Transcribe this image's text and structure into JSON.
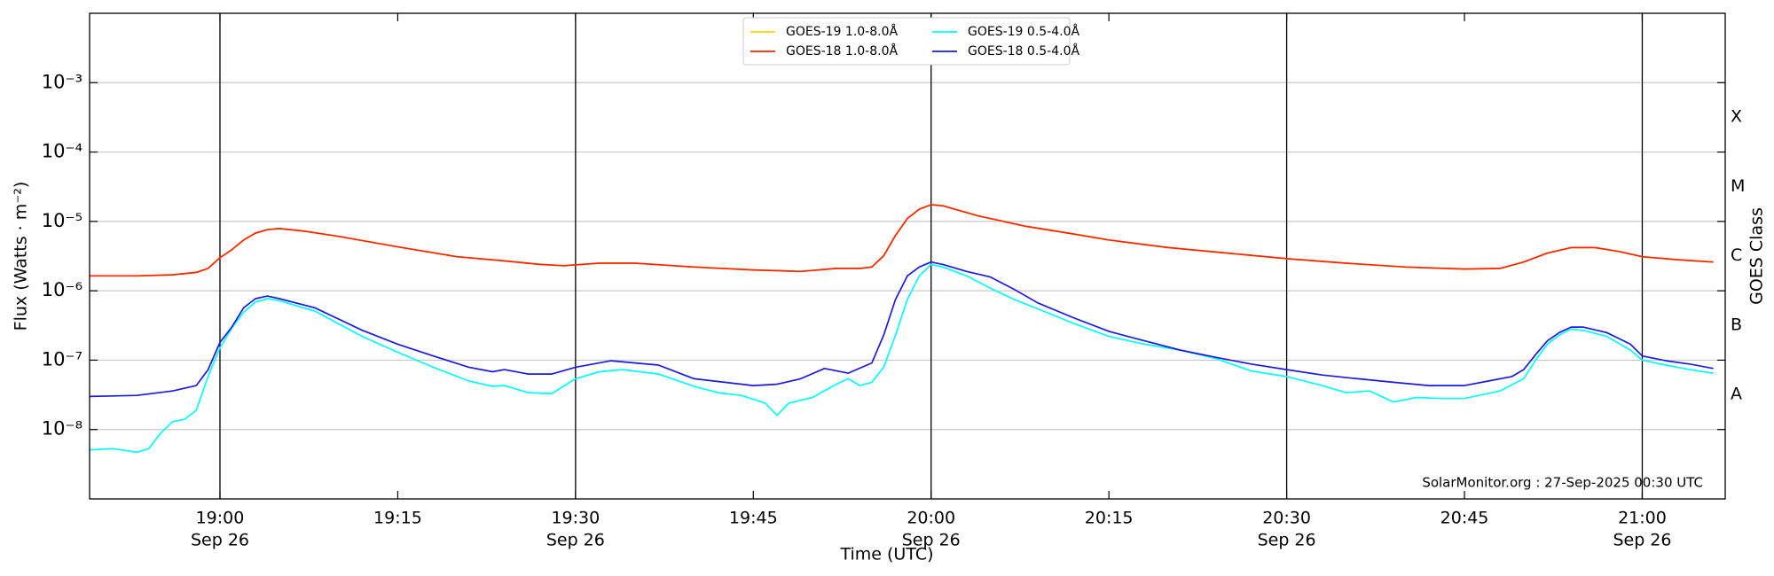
{
  "chart_data": {
    "type": "line",
    "xlabel": "Time (UTC)",
    "ylabel": "Flux (Watts · m⁻²)",
    "y2label": "GOES Class",
    "annotation": "SolarMonitor.org : 27-Sep-2025 00:30 UTC",
    "log_y": true,
    "grid": true,
    "legend": "upper center",
    "xlim": [
      "18:49",
      "21:07"
    ],
    "xticks": [
      {
        "value": "19:00",
        "label": [
          "19:00",
          "Sep 26"
        ]
      },
      "19:15",
      {
        "value": "19:30",
        "label": [
          "19:30",
          "Sep 26"
        ]
      },
      "19:45",
      {
        "value": "20:00",
        "label": [
          "20:00",
          "Sep 26"
        ]
      },
      "20:15",
      {
        "value": "20:30",
        "label": [
          "20:30",
          "Sep 26"
        ]
      },
      "20:45",
      {
        "value": "21:00",
        "label": [
          "21:00",
          "Sep 26"
        ]
      }
    ],
    "vlines": [
      "19:00",
      "19:30",
      "20:00",
      "20:30",
      "21:00"
    ],
    "ylim": [
      1e-09,
      0.01
    ],
    "yticks": [
      {
        "value": 1e-08,
        "label": "10⁻⁸"
      },
      {
        "value": 1e-07,
        "label": "10⁻⁷"
      },
      {
        "value": 1e-06,
        "label": "10⁻⁶"
      },
      {
        "value": 1e-05,
        "label": "10⁻⁵"
      },
      {
        "value": 0.0001,
        "label": "10⁻⁴"
      },
      {
        "value": 0.001,
        "label": "10⁻³"
      }
    ],
    "y2lim": [
      1e-09,
      0.01
    ],
    "y2ticks": [
      {
        "value": 3.2e-08,
        "label": "A"
      },
      {
        "value": 3.2e-07,
        "label": "B"
      },
      {
        "value": 3.2e-06,
        "label": "C"
      },
      {
        "value": 3.2e-05,
        "label": "M"
      },
      {
        "value": 0.00032,
        "label": "X"
      }
    ],
    "series": [
      {
        "name": "GOES-19 1.0-8.0Å",
        "color": "#ffd700",
        "x": [
          "18:49",
          "18:53",
          "18:56",
          "18:58",
          "18:59",
          "19:00",
          "19:01",
          "19:02",
          "19:03",
          "19:04",
          "19:05",
          "19:07",
          "19:10",
          "19:15",
          "19:20",
          "19:24",
          "19:27",
          "19:29",
          "19:32",
          "19:35",
          "19:40",
          "19:45",
          "19:49",
          "19:52",
          "19:54",
          "19:55",
          "19:56",
          "19:57",
          "19:58",
          "19:59",
          "20:00",
          "20:01",
          "20:02",
          "20:04",
          "20:08",
          "20:12",
          "20:15",
          "20:20",
          "20:25",
          "20:30",
          "20:35",
          "20:40",
          "20:45",
          "20:48",
          "20:50",
          "20:52",
          "20:54",
          "20:56",
          "20:58",
          "21:00",
          "21:03",
          "21:06"
        ],
        "values": [
          1.64e-06,
          1.64e-06,
          1.7e-06,
          1.84e-06,
          2.1e-06,
          3e-06,
          3.9e-06,
          5.4e-06,
          6.8e-06,
          7.6e-06,
          7.9e-06,
          7.3e-06,
          6.1e-06,
          4.3e-06,
          3.1e-06,
          2.7e-06,
          2.4e-06,
          2.3e-06,
          2.5e-06,
          2.5e-06,
          2.2e-06,
          2e-06,
          1.9e-06,
          2.1e-06,
          2.1e-06,
          2.2e-06,
          3.2e-06,
          6.3e-06,
          1.1e-05,
          1.5e-05,
          1.74e-05,
          1.68e-05,
          1.5e-05,
          1.2e-05,
          8.5e-06,
          6.6e-06,
          5.4e-06,
          4.2e-06,
          3.5e-06,
          2.9e-06,
          2.5e-06,
          2.2e-06,
          2.06e-06,
          2.1e-06,
          2.6e-06,
          3.5e-06,
          4.2e-06,
          4.2e-06,
          3.7e-06,
          3.1e-06,
          2.8e-06,
          2.6e-06
        ]
      },
      {
        "name": "GOES-18 1.0-8.0Å",
        "color": "#ff2200",
        "x": [
          "18:49",
          "18:53",
          "18:56",
          "18:58",
          "18:59",
          "19:00",
          "19:01",
          "19:02",
          "19:03",
          "19:04",
          "19:05",
          "19:07",
          "19:10",
          "19:15",
          "19:20",
          "19:24",
          "19:27",
          "19:29",
          "19:32",
          "19:35",
          "19:40",
          "19:45",
          "19:49",
          "19:52",
          "19:54",
          "19:55",
          "19:56",
          "19:57",
          "19:58",
          "19:59",
          "20:00",
          "20:01",
          "20:02",
          "20:04",
          "20:08",
          "20:12",
          "20:15",
          "20:20",
          "20:25",
          "20:30",
          "20:35",
          "20:40",
          "20:45",
          "20:48",
          "20:50",
          "20:52",
          "20:54",
          "20:56",
          "20:58",
          "21:00",
          "21:03",
          "21:06"
        ],
        "values": [
          1.64e-06,
          1.64e-06,
          1.7e-06,
          1.84e-06,
          2.1e-06,
          3e-06,
          3.9e-06,
          5.4e-06,
          6.8e-06,
          7.6e-06,
          7.9e-06,
          7.3e-06,
          6.1e-06,
          4.3e-06,
          3.1e-06,
          2.7e-06,
          2.4e-06,
          2.3e-06,
          2.5e-06,
          2.5e-06,
          2.2e-06,
          2e-06,
          1.9e-06,
          2.1e-06,
          2.1e-06,
          2.2e-06,
          3.2e-06,
          6.3e-06,
          1.1e-05,
          1.5e-05,
          1.74e-05,
          1.68e-05,
          1.5e-05,
          1.2e-05,
          8.5e-06,
          6.6e-06,
          5.4e-06,
          4.2e-06,
          3.5e-06,
          2.9e-06,
          2.5e-06,
          2.2e-06,
          2.06e-06,
          2.1e-06,
          2.6e-06,
          3.5e-06,
          4.2e-06,
          4.2e-06,
          3.7e-06,
          3.1e-06,
          2.8e-06,
          2.6e-06
        ]
      },
      {
        "name": "GOES-19 0.5-4.0Å",
        "color": "#00ffff",
        "x": [
          "18:49",
          "18:51",
          "18:53",
          "18:54",
          "18:55",
          "18:56",
          "18:57",
          "18:58",
          "18:59",
          "19:00",
          "19:01",
          "19:02",
          "19:03",
          "19:04",
          "19:05",
          "19:08",
          "19:12",
          "19:15",
          "19:18",
          "19:21",
          "19:23",
          "19:24",
          "19:26",
          "19:28",
          "19:30",
          "19:32",
          "19:34",
          "19:37",
          "19:40",
          "19:42",
          "19:44",
          "19:46",
          "19:47",
          "19:48",
          "19:50",
          "19:52",
          "19:53",
          "19:54",
          "19:55",
          "19:56",
          "19:57",
          "19:58",
          "19:59",
          "20:00",
          "20:01",
          "20:03",
          "20:05",
          "20:07",
          "20:09",
          "20:12",
          "20:15",
          "20:18",
          "20:21",
          "20:24",
          "20:27",
          "20:30",
          "20:33",
          "20:35",
          "20:37",
          "20:39",
          "20:41",
          "20:43",
          "20:45",
          "20:48",
          "20:50",
          "20:51",
          "20:52",
          "20:53",
          "20:54",
          "20:55",
          "20:57",
          "20:59",
          "21:00",
          "21:02",
          "21:04",
          "21:06"
        ],
        "values": [
          5.1e-09,
          5.3e-09,
          4.7e-09,
          5.3e-09,
          8.9e-09,
          1.3e-08,
          1.4e-08,
          1.9e-08,
          5.8e-08,
          1.5e-07,
          2.9e-07,
          4.9e-07,
          6.9e-07,
          7.7e-07,
          7.2e-07,
          5.1e-07,
          2.2e-07,
          1.3e-07,
          7.9e-08,
          5e-08,
          4.2e-08,
          4.3e-08,
          3.4e-08,
          3.3e-08,
          5.4e-08,
          6.8e-08,
          7.3e-08,
          6.3e-08,
          4.2e-08,
          3.4e-08,
          3.1e-08,
          2.4e-08,
          1.6e-08,
          2.4e-08,
          2.9e-08,
          4.5e-08,
          5.4e-08,
          4.3e-08,
          4.8e-08,
          7.9e-08,
          2.3e-07,
          7.5e-07,
          1.64e-06,
          2.4e-06,
          2.2e-06,
          1.64e-06,
          1.09e-06,
          7.5e-07,
          5.5e-07,
          3.4e-07,
          2.2e-07,
          1.7e-07,
          1.4e-07,
          1.06e-07,
          7e-08,
          5.8e-08,
          4.3e-08,
          3.4e-08,
          3.6e-08,
          2.5e-08,
          2.9e-08,
          2.8e-08,
          2.8e-08,
          3.6e-08,
          5.4e-08,
          1e-07,
          1.7e-07,
          2.3e-07,
          2.8e-07,
          2.7e-07,
          2.2e-07,
          1.4e-07,
          1e-07,
          8.5e-08,
          7.3e-08,
          6.5e-08
        ]
      },
      {
        "name": "GOES-18 0.5-4.0Å",
        "color": "#1a1ae0",
        "x": [
          "18:49",
          "18:53",
          "18:56",
          "18:58",
          "18:59",
          "19:00",
          "19:01",
          "19:02",
          "19:03",
          "19:04",
          "19:05",
          "19:08",
          "19:12",
          "19:15",
          "19:18",
          "19:21",
          "19:23",
          "19:24",
          "19:26",
          "19:28",
          "19:30",
          "19:33",
          "19:37",
          "19:40",
          "19:45",
          "19:47",
          "19:49",
          "19:51",
          "19:53",
          "19:55",
          "19:56",
          "19:57",
          "19:58",
          "19:59",
          "20:00",
          "20:01",
          "20:03",
          "20:05",
          "20:07",
          "20:09",
          "20:12",
          "20:15",
          "20:18",
          "20:21",
          "20:24",
          "20:27",
          "20:30",
          "20:33",
          "20:36",
          "20:39",
          "20:42",
          "20:45",
          "20:47",
          "20:49",
          "20:50",
          "20:51",
          "20:52",
          "20:53",
          "20:54",
          "20:55",
          "20:57",
          "20:59",
          "21:00",
          "21:02",
          "21:04",
          "21:06"
        ],
        "values": [
          3e-08,
          3.1e-08,
          3.6e-08,
          4.3e-08,
          7.3e-08,
          1.8e-07,
          3e-07,
          5.7e-07,
          7.7e-07,
          8.4e-07,
          7.7e-07,
          5.7e-07,
          2.7e-07,
          1.7e-07,
          1.15e-07,
          7.9e-08,
          6.8e-08,
          7.3e-08,
          6.3e-08,
          6.3e-08,
          7.9e-08,
          9.8e-08,
          8.5e-08,
          5.4e-08,
          4.3e-08,
          4.5e-08,
          5.4e-08,
          7.6e-08,
          6.5e-08,
          9.1e-08,
          2.3e-07,
          7.5e-07,
          1.64e-06,
          2.2e-06,
          2.6e-06,
          2.4e-06,
          1.9e-06,
          1.58e-06,
          1.05e-06,
          6.7e-07,
          4.1e-07,
          2.6e-07,
          1.9e-07,
          1.4e-07,
          1.1e-07,
          8.8e-08,
          7.3e-08,
          6.1e-08,
          5.4e-08,
          4.8e-08,
          4.3e-08,
          4.3e-08,
          5e-08,
          5.8e-08,
          7.3e-08,
          1.2e-07,
          1.9e-07,
          2.5e-07,
          3e-07,
          3e-07,
          2.5e-07,
          1.7e-07,
          1.15e-07,
          9.8e-08,
          8.8e-08,
          7.6e-08
        ]
      }
    ]
  }
}
